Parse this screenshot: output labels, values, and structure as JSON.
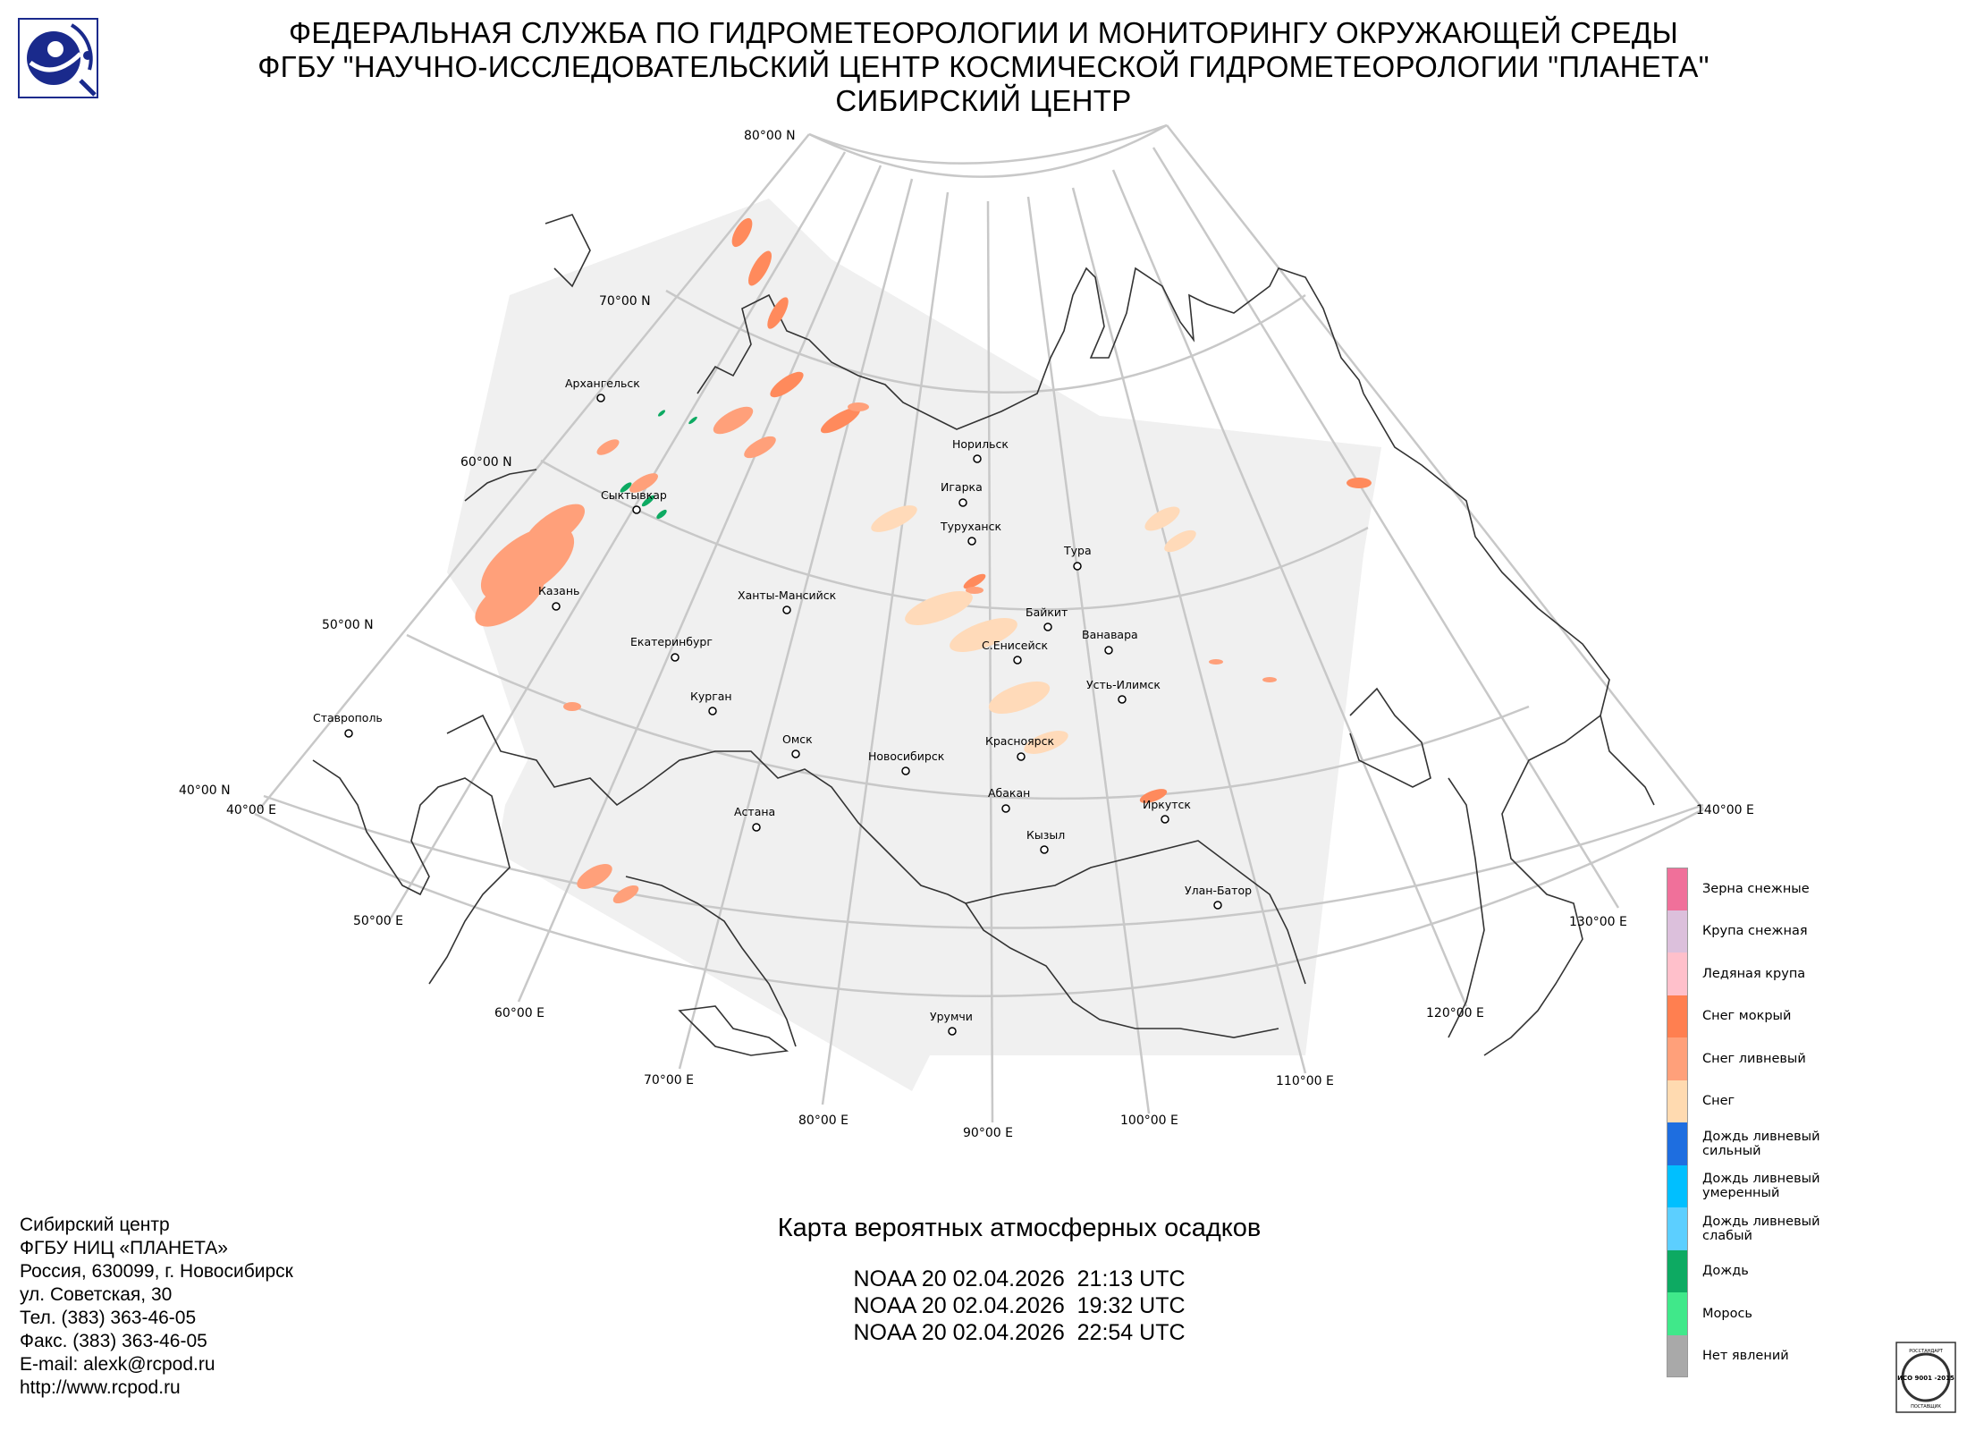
{
  "header": {
    "line1": "ФЕДЕРАЛЬНАЯ СЛУЖБА ПО ГИДРОМЕТЕОРОЛОГИИ И МОНИТОРИНГУ ОКРУЖАЮЩЕЙ СРЕДЫ",
    "line2": "ФГБУ \"НАУЧНО-ИССЛЕДОВАТЕЛЬСКИЙ ЦЕНТР КОСМИЧЕСКОЙ ГИДРОМЕТЕОРОЛОГИИ \"ПЛАНЕТА\"",
    "line3": "СИБИРСКИЙ ЦЕНТР"
  },
  "map": {
    "latitude_labels": [
      "80°00 N",
      "70°00 N",
      "60°00 N",
      "50°00 N",
      "40°00 N"
    ],
    "longitude_labels": [
      "40°00 E",
      "50°00 E",
      "60°00 E",
      "70°00 E",
      "80°00 E",
      "90°00 E",
      "100°00 E",
      "110°00 E",
      "120°00 E",
      "130°00 E",
      "140°00 E"
    ],
    "cities": [
      {
        "name": "Архангельск"
      },
      {
        "name": "Сыктывкар"
      },
      {
        "name": "Казань"
      },
      {
        "name": "Екатеринбург"
      },
      {
        "name": "Ханты-Мансийск"
      },
      {
        "name": "Курган"
      },
      {
        "name": "Ставрополь"
      },
      {
        "name": "Омск"
      },
      {
        "name": "Астана"
      },
      {
        "name": "Новосибирск"
      },
      {
        "name": "Норильск"
      },
      {
        "name": "Игарка"
      },
      {
        "name": "Туруханск"
      },
      {
        "name": "Тура"
      },
      {
        "name": "Байкит"
      },
      {
        "name": "С.Енисейск"
      },
      {
        "name": "Ванавара"
      },
      {
        "name": "Усть-Илимск"
      },
      {
        "name": "Красноярск"
      },
      {
        "name": "Абакан"
      },
      {
        "name": "Иркутск"
      },
      {
        "name": "Кызыл"
      },
      {
        "name": "Улан-Батор"
      },
      {
        "name": "Урумчи"
      }
    ]
  },
  "legend": [
    {
      "label": "Зерна снежные",
      "color": "#f0709a"
    },
    {
      "label": "Крупа снежная",
      "color": "#dcc0dc"
    },
    {
      "label": "Ледяная крупа",
      "color": "#ffc0cb"
    },
    {
      "label": "Снег мокрый",
      "color": "#ff7f50"
    },
    {
      "label": "Снег ливневый",
      "color": "#ffa07a"
    },
    {
      "label": "Снег",
      "color": "#ffdab0"
    },
    {
      "label": "Дождь ливневый\nсильный",
      "color": "#1e6ee0"
    },
    {
      "label": "Дождь ливневый\nумеренный",
      "color": "#00bfff"
    },
    {
      "label": "Дождь ливневый\nслабый",
      "color": "#5ccfff"
    },
    {
      "label": "Дождь",
      "color": "#0daa62"
    },
    {
      "label": "Морось",
      "color": "#40e88a"
    },
    {
      "label": "Нет явлений",
      "color": "#a9a9a9"
    }
  ],
  "contact": {
    "lines": [
      "Сибирский центр",
      "ФГБУ НИЦ «ПЛАНЕТА»",
      "Россия, 630099, г. Новосибирск",
      "ул. Советская, 30",
      "Тел. (383) 363-46-05",
      "Факс. (383) 363-46-05",
      "E-mail: alexk@rcpod.ru",
      "http://www.rcpod.ru"
    ]
  },
  "map_title": "Карта вероятных атмосферных осадков",
  "passes": [
    "NOAA 20 02.04.2026  21:13 UTC",
    "NOAA 20 02.04.2026  19:32 UTC",
    "NOAA 20 02.04.2026  22:54 UTC"
  ],
  "iso_badge": {
    "top_text": "РОССТАНДАРТ",
    "main_text": "ИСО 9001 -2015",
    "bottom_text": "ПОСТАВЩИК"
  }
}
